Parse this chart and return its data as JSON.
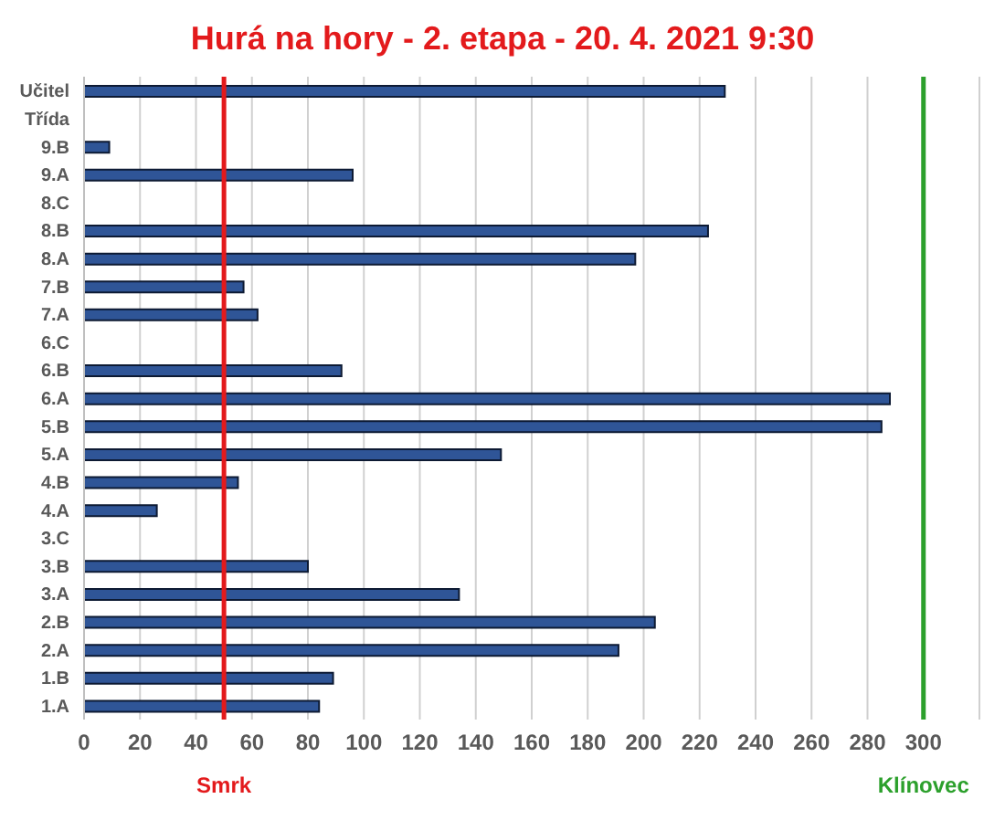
{
  "chart_data": {
    "type": "bar",
    "orientation": "horizontal",
    "title": "Hurá na hory - 2. etapa - 20. 4. 2021 9:30",
    "categories": [
      "Učitel",
      "Třída",
      "9.B",
      "9.A",
      "8.C",
      "8.B",
      "8.A",
      "7.B",
      "7.A",
      "6.C",
      "6.B",
      "6.A",
      "5.B",
      "5.A",
      "4.B",
      "4.A",
      "3.C",
      "3.B",
      "3.A",
      "2.B",
      "2.A",
      "1.B",
      "1.A"
    ],
    "values": [
      229,
      null,
      9,
      96,
      null,
      223,
      197,
      57,
      62,
      null,
      92,
      288,
      285,
      149,
      55,
      26,
      null,
      80,
      134,
      204,
      191,
      89,
      84
    ],
    "color": "#2f5597",
    "xlim": [
      0,
      320
    ],
    "xticks": [
      0,
      20,
      40,
      60,
      80,
      100,
      120,
      140,
      160,
      180,
      200,
      220,
      240,
      260,
      280,
      300
    ],
    "grid": "x",
    "legend": false,
    "ref_lines": [
      {
        "axis": "x",
        "value": 50,
        "label": "Smrk",
        "color": "#e31a1c"
      },
      {
        "axis": "x",
        "value": 300,
        "label": "Klínovec",
        "color": "#2ca02c"
      }
    ]
  }
}
